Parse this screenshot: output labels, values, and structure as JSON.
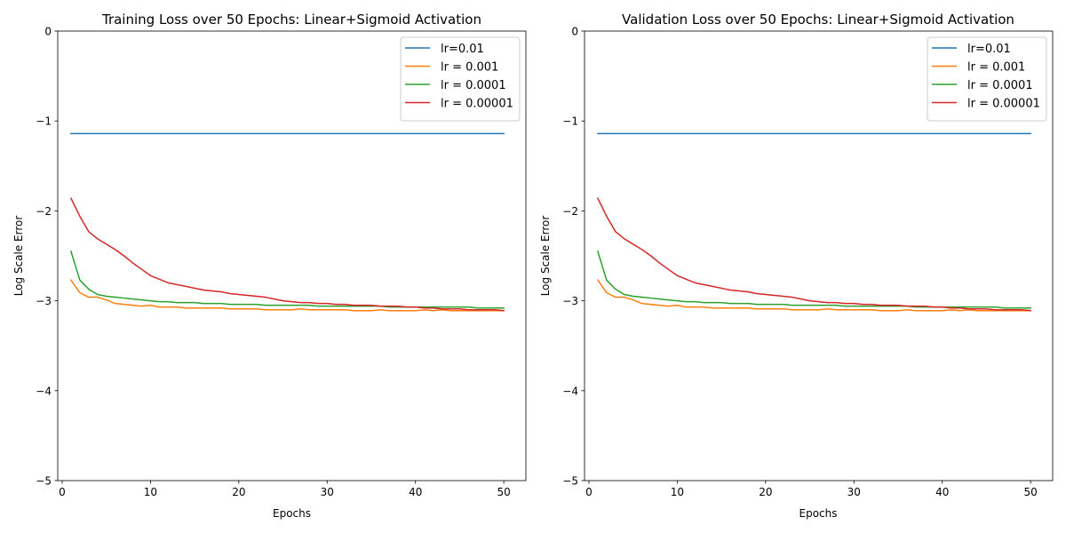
{
  "chart_data": [
    {
      "type": "line",
      "title": "Training Loss over 50 Epochs: Linear+Sigmoid Activation",
      "xlabel": "Epochs",
      "ylabel": "Log Scale Error",
      "xlim": [
        -0.5,
        52.5
      ],
      "ylim": [
        -5,
        0
      ],
      "xticks": [
        0,
        10,
        20,
        30,
        40,
        50
      ],
      "yticks": [
        0,
        -1,
        -2,
        -3,
        -4,
        -5
      ],
      "ytick_labels": [
        "0",
        "−1",
        "−2",
        "−3",
        "−4",
        "−5"
      ],
      "grid": false,
      "legend_position": "top-right",
      "x": [
        1,
        2,
        3,
        4,
        5,
        6,
        7,
        8,
        9,
        10,
        11,
        12,
        13,
        14,
        15,
        16,
        17,
        18,
        19,
        20,
        21,
        22,
        23,
        24,
        25,
        26,
        27,
        28,
        29,
        30,
        31,
        32,
        33,
        34,
        35,
        36,
        37,
        38,
        39,
        40,
        41,
        42,
        43,
        44,
        45,
        46,
        47,
        48,
        49,
        50
      ],
      "series": [
        {
          "name": "lr=0.01",
          "color": "#1f77b4",
          "values": [
            -1.14,
            -1.14,
            -1.14,
            -1.14,
            -1.14,
            -1.14,
            -1.14,
            -1.14,
            -1.14,
            -1.14,
            -1.14,
            -1.14,
            -1.14,
            -1.14,
            -1.14,
            -1.14,
            -1.14,
            -1.14,
            -1.14,
            -1.14,
            -1.14,
            -1.14,
            -1.14,
            -1.14,
            -1.14,
            -1.14,
            -1.14,
            -1.14,
            -1.14,
            -1.14,
            -1.14,
            -1.14,
            -1.14,
            -1.14,
            -1.14,
            -1.14,
            -1.14,
            -1.14,
            -1.14,
            -1.14,
            -1.14,
            -1.14,
            -1.14,
            -1.14,
            -1.14,
            -1.14,
            -1.14,
            -1.14,
            -1.14,
            -1.14
          ]
        },
        {
          "name": "lr = 0.001",
          "color": "#ff7f0e",
          "values": [
            -2.77,
            -2.91,
            -2.96,
            -2.96,
            -2.99,
            -3.03,
            -3.04,
            -3.05,
            -3.06,
            -3.05,
            -3.07,
            -3.07,
            -3.07,
            -3.08,
            -3.08,
            -3.08,
            -3.08,
            -3.08,
            -3.09,
            -3.09,
            -3.09,
            -3.09,
            -3.1,
            -3.1,
            -3.1,
            -3.1,
            -3.09,
            -3.1,
            -3.1,
            -3.1,
            -3.1,
            -3.1,
            -3.11,
            -3.11,
            -3.11,
            -3.1,
            -3.11,
            -3.11,
            -3.11,
            -3.11,
            -3.1,
            -3.11,
            -3.1,
            -3.11,
            -3.11,
            -3.11,
            -3.11,
            -3.11,
            -3.11,
            -3.11
          ]
        },
        {
          "name": "lr = 0.0001",
          "color": "#2ca02c",
          "values": [
            -2.45,
            -2.77,
            -2.87,
            -2.93,
            -2.95,
            -2.96,
            -2.97,
            -2.98,
            -2.99,
            -3.0,
            -3.01,
            -3.01,
            -3.02,
            -3.02,
            -3.02,
            -3.03,
            -3.03,
            -3.03,
            -3.04,
            -3.04,
            -3.04,
            -3.04,
            -3.05,
            -3.05,
            -3.05,
            -3.05,
            -3.05,
            -3.05,
            -3.06,
            -3.06,
            -3.06,
            -3.06,
            -3.06,
            -3.06,
            -3.06,
            -3.06,
            -3.07,
            -3.07,
            -3.07,
            -3.07,
            -3.07,
            -3.07,
            -3.07,
            -3.07,
            -3.07,
            -3.07,
            -3.08,
            -3.08,
            -3.08,
            -3.08
          ]
        },
        {
          "name": "lr = 0.00001",
          "color": "#d62728",
          "values": [
            -1.86,
            -2.06,
            -2.23,
            -2.31,
            -2.37,
            -2.43,
            -2.5,
            -2.58,
            -2.65,
            -2.72,
            -2.76,
            -2.8,
            -2.82,
            -2.84,
            -2.86,
            -2.88,
            -2.89,
            -2.9,
            -2.92,
            -2.93,
            -2.94,
            -2.95,
            -2.96,
            -2.98,
            -3.0,
            -3.01,
            -3.02,
            -3.02,
            -3.03,
            -3.03,
            -3.04,
            -3.04,
            -3.05,
            -3.05,
            -3.05,
            -3.06,
            -3.06,
            -3.06,
            -3.07,
            -3.07,
            -3.08,
            -3.08,
            -3.09,
            -3.09,
            -3.09,
            -3.1,
            -3.1,
            -3.1,
            -3.1,
            -3.11
          ]
        }
      ]
    },
    {
      "type": "line",
      "title": "Validation Loss over 50 Epochs: Linear+Sigmoid Activation",
      "xlabel": "Epochs",
      "ylabel": "Log Scale Error",
      "xlim": [
        -0.5,
        52.5
      ],
      "ylim": [
        -5,
        0
      ],
      "xticks": [
        0,
        10,
        20,
        30,
        40,
        50
      ],
      "yticks": [
        0,
        -1,
        -2,
        -3,
        -4,
        -5
      ],
      "ytick_labels": [
        "0",
        "−1",
        "−2",
        "−3",
        "−4",
        "−5"
      ],
      "grid": false,
      "legend_position": "top-right",
      "x": [
        1,
        2,
        3,
        4,
        5,
        6,
        7,
        8,
        9,
        10,
        11,
        12,
        13,
        14,
        15,
        16,
        17,
        18,
        19,
        20,
        21,
        22,
        23,
        24,
        25,
        26,
        27,
        28,
        29,
        30,
        31,
        32,
        33,
        34,
        35,
        36,
        37,
        38,
        39,
        40,
        41,
        42,
        43,
        44,
        45,
        46,
        47,
        48,
        49,
        50
      ],
      "series": [
        {
          "name": "lr=0.01",
          "color": "#1f77b4",
          "values": [
            -1.14,
            -1.14,
            -1.14,
            -1.14,
            -1.14,
            -1.14,
            -1.14,
            -1.14,
            -1.14,
            -1.14,
            -1.14,
            -1.14,
            -1.14,
            -1.14,
            -1.14,
            -1.14,
            -1.14,
            -1.14,
            -1.14,
            -1.14,
            -1.14,
            -1.14,
            -1.14,
            -1.14,
            -1.14,
            -1.14,
            -1.14,
            -1.14,
            -1.14,
            -1.14,
            -1.14,
            -1.14,
            -1.14,
            -1.14,
            -1.14,
            -1.14,
            -1.14,
            -1.14,
            -1.14,
            -1.14,
            -1.14,
            -1.14,
            -1.14,
            -1.14,
            -1.14,
            -1.14,
            -1.14,
            -1.14,
            -1.14,
            -1.14
          ]
        },
        {
          "name": "lr = 0.001",
          "color": "#ff7f0e",
          "values": [
            -2.77,
            -2.91,
            -2.96,
            -2.96,
            -2.99,
            -3.03,
            -3.04,
            -3.05,
            -3.06,
            -3.05,
            -3.07,
            -3.07,
            -3.07,
            -3.08,
            -3.08,
            -3.08,
            -3.08,
            -3.08,
            -3.09,
            -3.09,
            -3.09,
            -3.09,
            -3.1,
            -3.1,
            -3.1,
            -3.1,
            -3.09,
            -3.1,
            -3.1,
            -3.1,
            -3.1,
            -3.1,
            -3.11,
            -3.11,
            -3.11,
            -3.1,
            -3.11,
            -3.11,
            -3.11,
            -3.11,
            -3.1,
            -3.11,
            -3.1,
            -3.11,
            -3.11,
            -3.11,
            -3.11,
            -3.11,
            -3.11,
            -3.11
          ]
        },
        {
          "name": "lr = 0.0001",
          "color": "#2ca02c",
          "values": [
            -2.45,
            -2.77,
            -2.87,
            -2.93,
            -2.95,
            -2.96,
            -2.97,
            -2.98,
            -2.99,
            -3.0,
            -3.01,
            -3.01,
            -3.02,
            -3.02,
            -3.02,
            -3.03,
            -3.03,
            -3.03,
            -3.04,
            -3.04,
            -3.04,
            -3.04,
            -3.05,
            -3.05,
            -3.05,
            -3.05,
            -3.05,
            -3.05,
            -3.06,
            -3.06,
            -3.06,
            -3.06,
            -3.06,
            -3.06,
            -3.06,
            -3.06,
            -3.07,
            -3.07,
            -3.07,
            -3.07,
            -3.07,
            -3.07,
            -3.07,
            -3.07,
            -3.07,
            -3.07,
            -3.08,
            -3.08,
            -3.08,
            -3.08
          ]
        },
        {
          "name": "lr = 0.00001",
          "color": "#d62728",
          "values": [
            -1.86,
            -2.06,
            -2.23,
            -2.31,
            -2.37,
            -2.43,
            -2.5,
            -2.58,
            -2.65,
            -2.72,
            -2.76,
            -2.8,
            -2.82,
            -2.84,
            -2.86,
            -2.88,
            -2.89,
            -2.9,
            -2.92,
            -2.93,
            -2.94,
            -2.95,
            -2.96,
            -2.98,
            -3.0,
            -3.01,
            -3.02,
            -3.02,
            -3.03,
            -3.03,
            -3.04,
            -3.04,
            -3.05,
            -3.05,
            -3.05,
            -3.06,
            -3.06,
            -3.06,
            -3.07,
            -3.07,
            -3.08,
            -3.08,
            -3.09,
            -3.09,
            -3.09,
            -3.1,
            -3.1,
            -3.1,
            -3.1,
            -3.11
          ]
        }
      ]
    }
  ]
}
